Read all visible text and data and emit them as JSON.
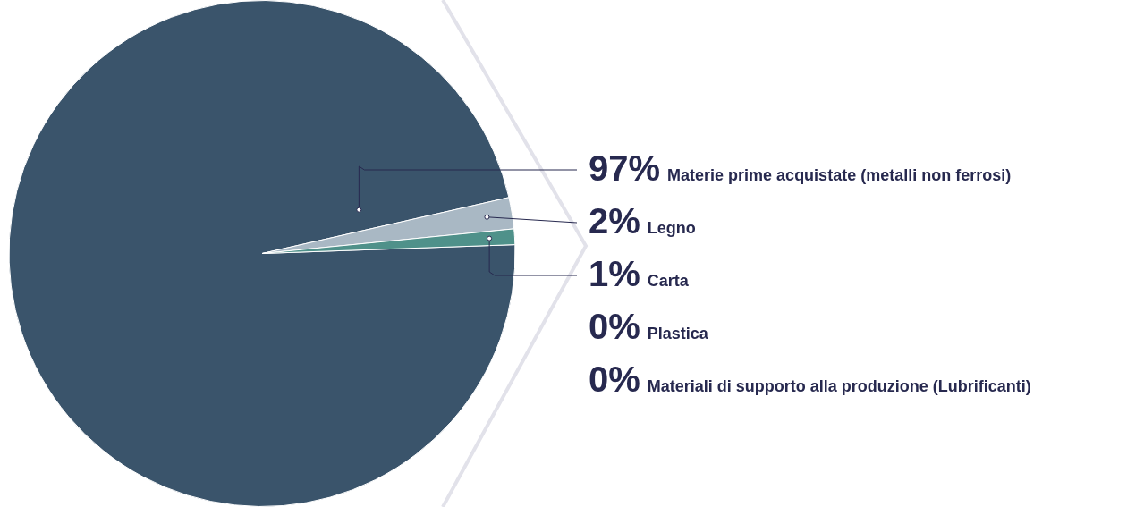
{
  "chart_data": {
    "type": "pie",
    "categories": [
      "Materie prime acquistate (metalli non ferrosi)",
      "Legno",
      "Carta",
      "Plastica",
      "Materiali di supporto alla produzione (Lubrificanti)"
    ],
    "values": [
      97,
      2,
      1,
      0,
      0
    ],
    "value_labels": [
      "97%",
      "2%",
      "1%",
      "0%",
      "0%"
    ],
    "colors": [
      "#3a546b",
      "#a9b8c4",
      "#4f918a",
      "#6f9f78",
      "#c9d6cf"
    ],
    "legend": false
  }
}
